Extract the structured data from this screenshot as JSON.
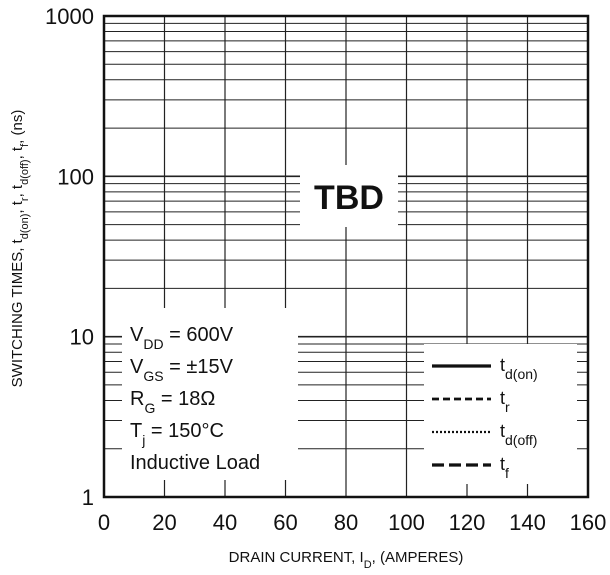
{
  "chart_data": {
    "type": "line",
    "title": "",
    "xlabel": {
      "main": "DRAIN CURRENT, I",
      "sub": "D",
      "tail": ", (AMPERES)"
    },
    "ylabel": {
      "parts": [
        {
          "t": "SWITCHING TIMES, t"
        },
        {
          "t": "d(on)",
          "sub": true
        },
        {
          "t": ", t"
        },
        {
          "t": "r",
          "sub": true
        },
        {
          "t": ", t"
        },
        {
          "t": "d(off)",
          "sub": true
        },
        {
          "t": ", t"
        },
        {
          "t": "f",
          "sub": true
        },
        {
          "t": ", (ns)"
        }
      ]
    },
    "x_range": [
      0,
      160
    ],
    "x_ticks": [
      "0",
      "20",
      "40",
      "60",
      "80",
      "100",
      "120",
      "140",
      "160"
    ],
    "y_range": [
      1,
      1000
    ],
    "y_scale": "log",
    "y_ticks": [
      "1",
      "10",
      "100",
      "1000"
    ],
    "grid": true,
    "placeholder_text": "TBD",
    "conditions": [
      {
        "main": "V",
        "sub": "DD",
        "rest": " = 600V"
      },
      {
        "main": "V",
        "sub": "GS",
        "rest": " = ±15V"
      },
      {
        "main": "R",
        "sub": "G",
        "rest": " = 18Ω"
      },
      {
        "main": "T",
        "sub": "j",
        "rest": " = 150°C"
      },
      {
        "main": "Inductive Load",
        "sub": "",
        "rest": ""
      }
    ],
    "legend": {
      "placement": "bottom-right",
      "entries": [
        {
          "main": "t",
          "sub": "d(on)",
          "style": "solid"
        },
        {
          "main": "t",
          "sub": "r",
          "style": "dashed-short"
        },
        {
          "main": "t",
          "sub": "d(off)",
          "style": "dotted"
        },
        {
          "main": "t",
          "sub": "f",
          "style": "dashed-long"
        }
      ]
    },
    "series": []
  }
}
